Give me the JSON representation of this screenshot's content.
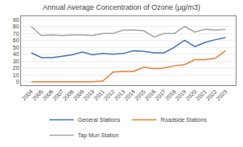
{
  "chart_data": {
    "type": "line",
    "title": "Annual Average Concentration of Ozone (μg/m3)",
    "x": [
      2004,
      2005,
      2006,
      2007,
      2008,
      2009,
      2010,
      2011,
      2012,
      2013,
      2014,
      2015,
      2016,
      2017,
      2018,
      2019,
      2020,
      2021,
      2022,
      2023
    ],
    "series": [
      {
        "name": "General Stations",
        "color": "#4472c4",
        "values": [
          42,
          35,
          35,
          37,
          39,
          43,
          39,
          41,
          40,
          41,
          45,
          44,
          42,
          42,
          50,
          60,
          51,
          57,
          61,
          64
        ]
      },
      {
        "name": "Roadside Stations",
        "color": "#ed7d31",
        "values": [
          0,
          0,
          0,
          0,
          0,
          0,
          0,
          1,
          14,
          15,
          15,
          21,
          19,
          20,
          23,
          25,
          32,
          32,
          34,
          45
        ]
      },
      {
        "name": "Tap Mun Station",
        "color": "#a6a6a6",
        "values": [
          80,
          67,
          68,
          67,
          68,
          68,
          67,
          70,
          70,
          75,
          75,
          74,
          65,
          70,
          70,
          80,
          72,
          76,
          75,
          76
        ]
      }
    ],
    "xlim": [
      2003,
      2024
    ],
    "xticks": [
      2004,
      2005,
      2006,
      2007,
      2008,
      2009,
      2010,
      2011,
      2012,
      2013,
      2014,
      2015,
      2016,
      2017,
      2018,
      2019,
      2020,
      2021,
      2022,
      2023
    ],
    "ylim": [
      -5,
      95
    ],
    "yticks": [
      0,
      10,
      20,
      30,
      40,
      50,
      60,
      70,
      80,
      90
    ],
    "grid": true,
    "legend": "bottom"
  }
}
